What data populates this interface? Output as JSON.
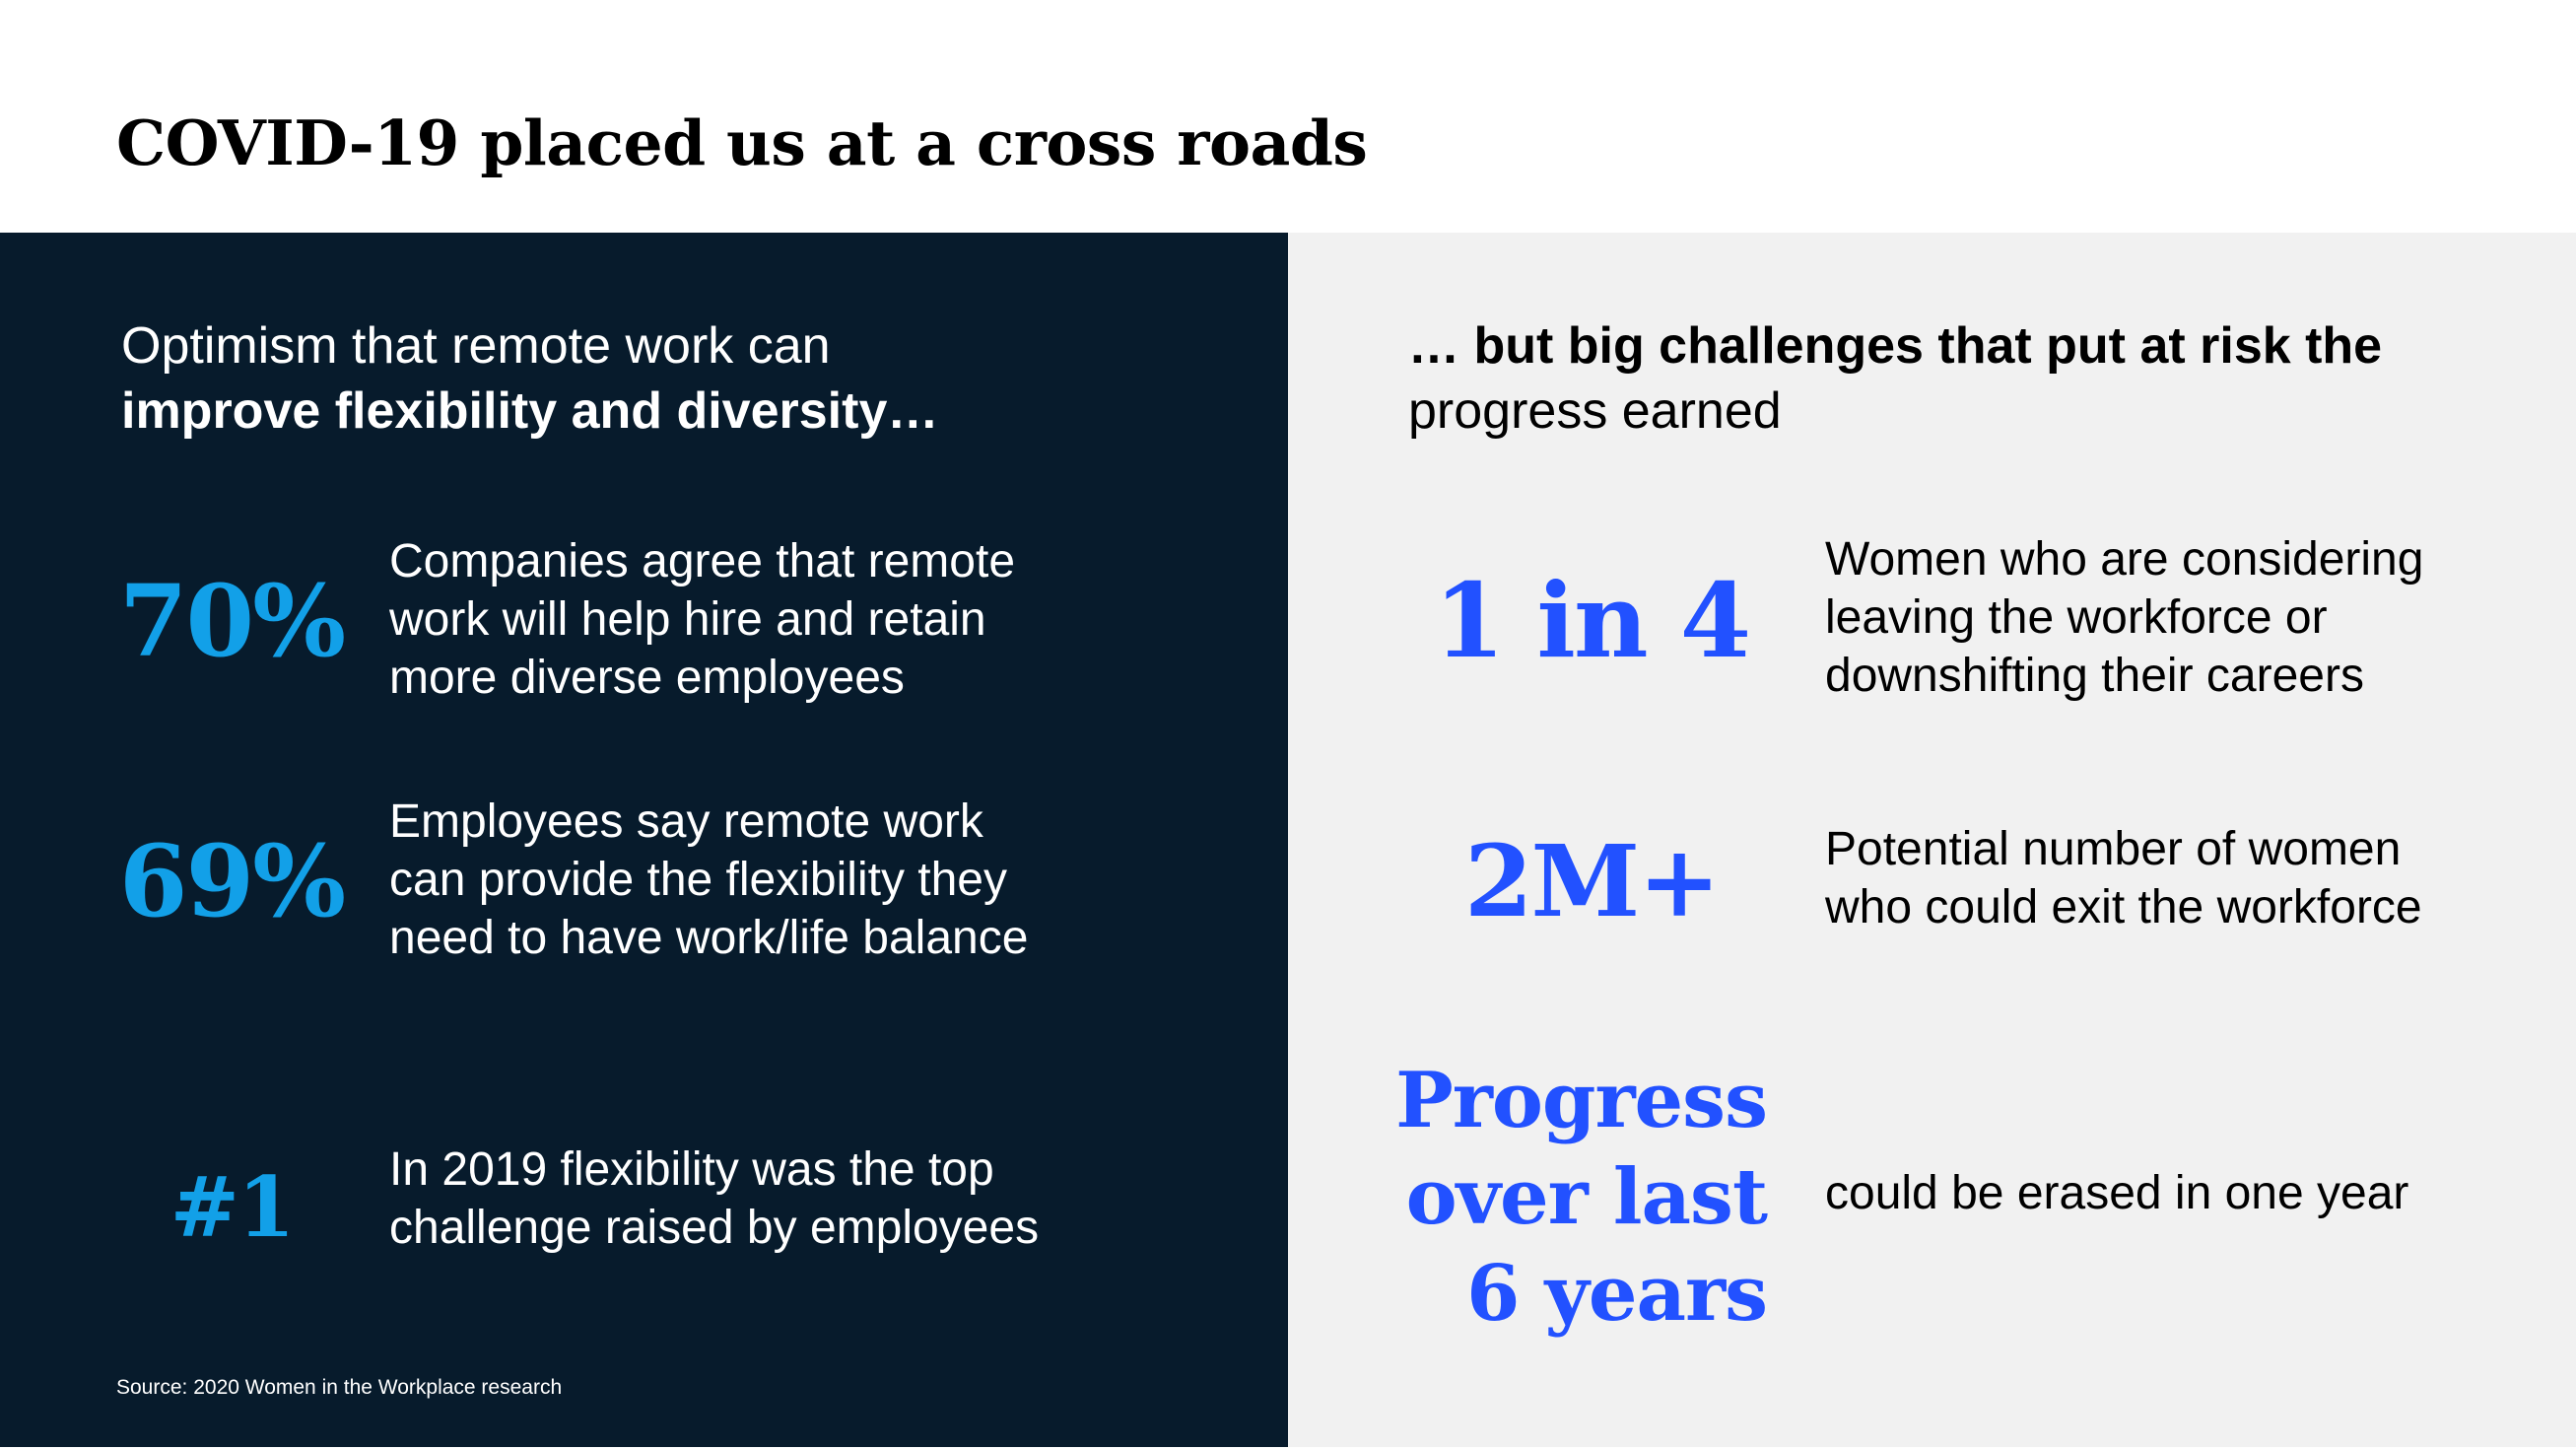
{
  "title": "COVID-19 placed us at a cross roads",
  "left": {
    "heading_normal": "Optimism that remote work can",
    "heading_bold": "improve flexibility and diversity…",
    "stats": [
      {
        "value": "70%",
        "description": "Companies agree that remote\nwork will help hire and retain\nmore diverse employees"
      },
      {
        "value": "69%",
        "description": "Employees say remote work\ncan provide the flexibility they\nneed to have work/life balance"
      },
      {
        "value": "#1",
        "description": "In 2019 flexibility was the top\nchallenge raised by employees"
      }
    ],
    "source": "Source: 2020 Women in the Workplace research"
  },
  "right": {
    "heading_bold": "… but big challenges that put at risk the",
    "heading_normal": "progress earned",
    "stats": [
      {
        "value": "1 in 4",
        "description": "Women who are considering\nleaving the workforce or\ndownshifting their careers"
      },
      {
        "value": "2M+",
        "description": "Potential number of women\nwho could exit the workforce"
      },
      {
        "value_lines": [
          "Progress",
          "over last",
          "6 years"
        ],
        "description": "could be erased in one year"
      }
    ]
  },
  "colors": {
    "left_panel_bg": "#071b2c",
    "right_panel_bg": "#f1f1f1",
    "left_stat": "#12a0e8",
    "right_stat": "#2251ff"
  }
}
